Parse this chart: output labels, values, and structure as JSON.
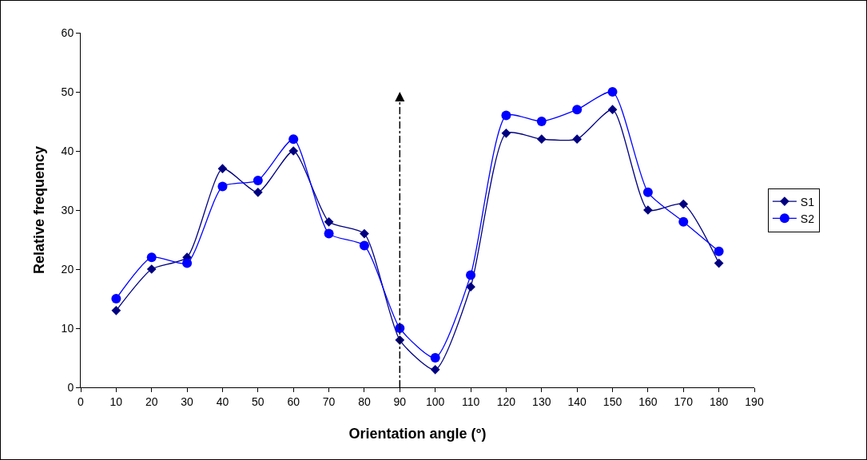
{
  "chart_data": {
    "type": "line",
    "xlabel": "Orientation angle (°)",
    "ylabel": "Relative frequency",
    "x": [
      10,
      20,
      30,
      40,
      50,
      60,
      70,
      80,
      90,
      100,
      110,
      120,
      130,
      140,
      150,
      160,
      170,
      180
    ],
    "series": [
      {
        "name": "S1",
        "color": "#000080",
        "marker": "diamond",
        "values": [
          13,
          20,
          22,
          37,
          33,
          40,
          28,
          26,
          8,
          3,
          17,
          43,
          42,
          42,
          47,
          30,
          31,
          21
        ]
      },
      {
        "name": "S2",
        "color": "#0000ff",
        "marker": "circle",
        "values": [
          15,
          22,
          21,
          34,
          35,
          42,
          26,
          24,
          10,
          5,
          19,
          46,
          45,
          47,
          50,
          33,
          28,
          23
        ]
      }
    ],
    "xlim": [
      0,
      190
    ],
    "xticks": [
      0,
      10,
      20,
      30,
      40,
      50,
      60,
      70,
      80,
      90,
      100,
      110,
      120,
      130,
      140,
      150,
      160,
      170,
      180,
      190
    ],
    "ylim": [
      0,
      60
    ],
    "yticks": [
      0,
      10,
      20,
      30,
      40,
      50,
      60
    ],
    "ref_lines": [
      {
        "axis": "x",
        "value": 90,
        "color": "#000000",
        "line_style": "dashdot"
      }
    ],
    "grid": false,
    "legend": "right",
    "line_style": "solid"
  }
}
